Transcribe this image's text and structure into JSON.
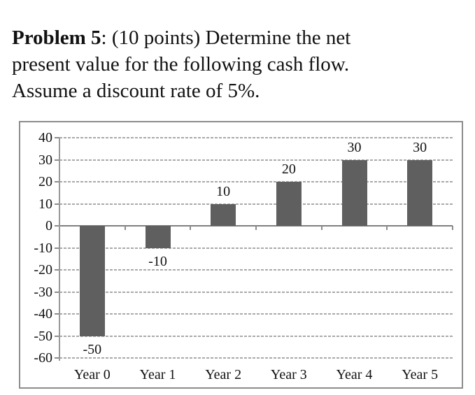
{
  "problem": {
    "number": "Problem 5",
    "line1_rest": ": (10 points) Determine the net",
    "line2": "present value for the following cash flow.",
    "line3": "Assume a discount rate of 5%."
  },
  "chart_data": {
    "type": "bar",
    "categories": [
      "Year 0",
      "Year 1",
      "Year 2",
      "Year 3",
      "Year 4",
      "Year 5"
    ],
    "values": [
      -50,
      -10,
      10,
      20,
      30,
      30
    ],
    "title": "",
    "xlabel": "",
    "ylabel": "",
    "ylim": [
      -60,
      40
    ],
    "ytick_step": 10,
    "grid": true,
    "legend": "none",
    "data_labels": true,
    "colors": {
      "bar": "#5f5f5f",
      "gridline": "#a9a9a9",
      "axis": "#999999",
      "zero_line": "#7f7f7f",
      "frame_border": "#8c8c8c",
      "text": "#111111"
    }
  }
}
